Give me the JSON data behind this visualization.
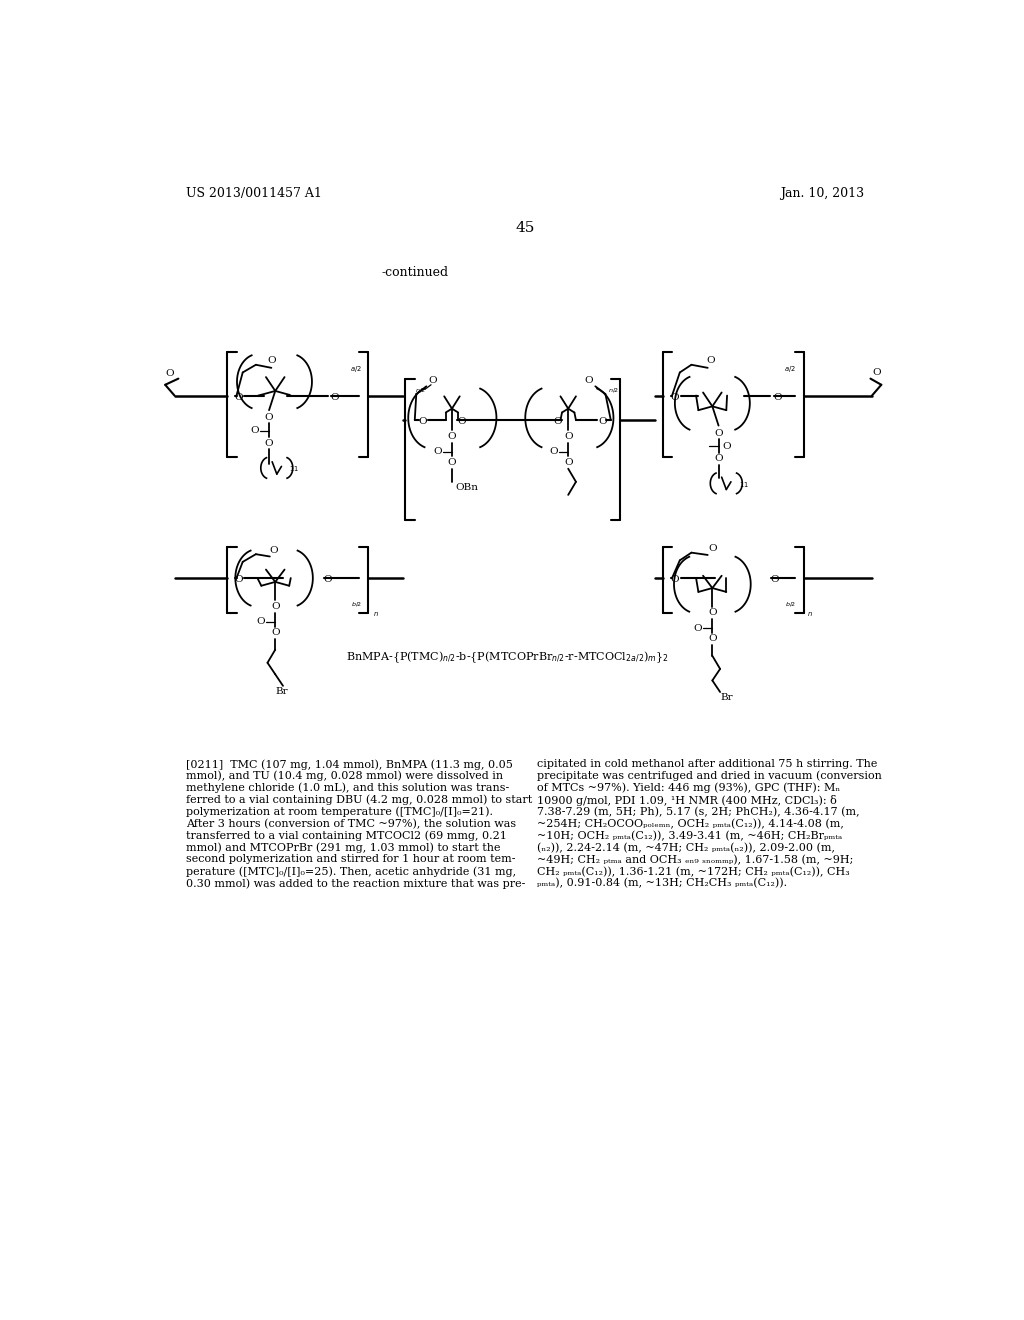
{
  "header_left": "US 2013/0011457 A1",
  "header_right": "Jan. 10, 2013",
  "page_number": "45",
  "continued_text": "-continued",
  "caption": "BnMPA-{P(TMC)_{n/2}-b-{P(MTCOPrBr_{n/2}-r-MTCOCl2_{a/2})_m]}_2",
  "bg_color": "#ffffff",
  "text_color": "#000000"
}
